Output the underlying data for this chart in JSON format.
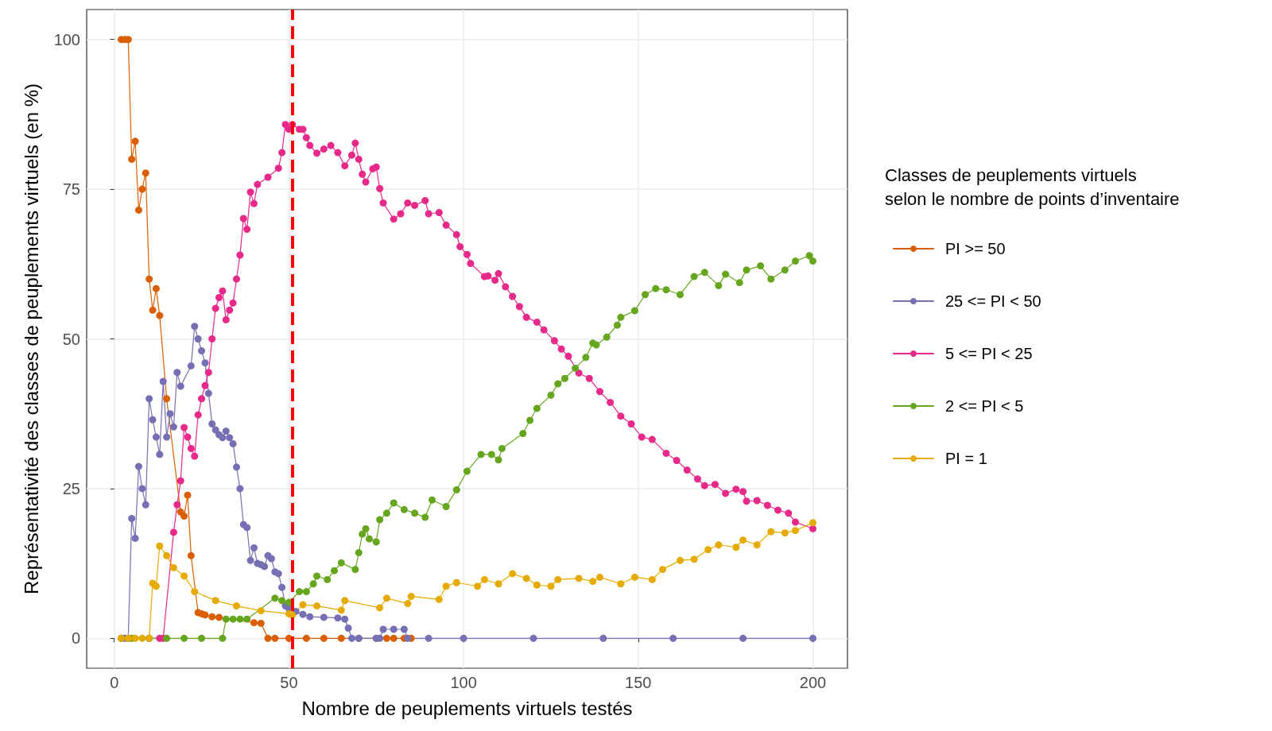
{
  "chart_data": {
    "type": "line",
    "xlabel": "Nombre de peuplements virtuels testés",
    "ylabel": "Représentativité des classes de peuplements virtuels (en %)",
    "legend_title": "Classes de peuplements virtuels\nselon le nombre de points d’inventaire",
    "legend": "right",
    "grid": true,
    "marker": "circle",
    "line_style": "solid",
    "xlim": [
      -7.9,
      209.9
    ],
    "xticks": [
      0,
      50,
      100,
      150,
      200
    ],
    "ylim": [
      -5,
      105
    ],
    "yticks": [
      0,
      25,
      50,
      75,
      100
    ],
    "ref_lines": [
      {
        "axis": "x",
        "value": 51,
        "color": "#ff0000",
        "line_style": "dashed"
      }
    ],
    "series": [
      {
        "name": "PI >= 50",
        "color": "#d95f02",
        "x": [
          2,
          3,
          4,
          5,
          6,
          7,
          8,
          9,
          10,
          11,
          12,
          13,
          15,
          19,
          20,
          21,
          22,
          24,
          25,
          26,
          28,
          30,
          40,
          42,
          44,
          46,
          50,
          55,
          60,
          65,
          70,
          75,
          78,
          80,
          83,
          85
        ],
        "values": [
          100,
          100,
          100,
          80,
          83,
          71.5,
          75,
          77.7,
          60,
          54.8,
          58.4,
          53.9,
          40,
          21.1,
          20.4,
          23.9,
          13.8,
          4.3,
          4.1,
          3.9,
          3.6,
          3.5,
          2.6,
          2.5,
          0,
          0,
          0,
          0,
          0,
          0,
          0,
          0,
          0,
          0,
          0,
          0
        ]
      },
      {
        "name": "25 <= PI < 50",
        "color": "#7570b3",
        "x": [
          2,
          3,
          4,
          5,
          6,
          7,
          8,
          9,
          10,
          11,
          12,
          13,
          14,
          15,
          16,
          17,
          18,
          19,
          22,
          23,
          24,
          25,
          26,
          27,
          28,
          29,
          30,
          31,
          32,
          33,
          34,
          35,
          36,
          37,
          38,
          39,
          40,
          41,
          42,
          43,
          44,
          45,
          46,
          47,
          48,
          49,
          50,
          52,
          54,
          56,
          60,
          64,
          66,
          67,
          68,
          70,
          75,
          76,
          77,
          80,
          83,
          84,
          90,
          100,
          120,
          140,
          160,
          180,
          200
        ],
        "values": [
          0,
          0,
          0,
          20,
          16.7,
          28.7,
          25,
          22.3,
          40,
          36.5,
          33.6,
          30.7,
          42.9,
          33.6,
          37.5,
          35.3,
          44.4,
          42.1,
          45.5,
          52.1,
          50,
          48,
          46,
          40.9,
          35.8,
          34.8,
          34,
          33.5,
          34.6,
          33.5,
          32.5,
          28.6,
          25,
          19,
          18.5,
          13,
          15.1,
          12.5,
          12.3,
          12,
          13.8,
          13.3,
          11.1,
          10.8,
          8.5,
          5.4,
          5,
          4.5,
          4,
          3.6,
          3.5,
          3.4,
          3.2,
          1.7,
          0,
          0,
          0,
          0,
          1.5,
          1.5,
          1.5,
          0,
          0,
          0,
          0,
          0,
          0,
          0,
          0
        ]
      },
      {
        "name": "5 <= PI < 25",
        "color": "#e7298a",
        "x": [
          10,
          13,
          14,
          17,
          18,
          19,
          20,
          21,
          22,
          23,
          24,
          25,
          26,
          27,
          28,
          29,
          30,
          31,
          32,
          33,
          34,
          35,
          36,
          37,
          38,
          39,
          40,
          41,
          44,
          47,
          48,
          49,
          50,
          51,
          53,
          54,
          55,
          56,
          58,
          60,
          62,
          64,
          66,
          68,
          69,
          70,
          71,
          72,
          74,
          75,
          76,
          77,
          80,
          82,
          84,
          86,
          89,
          90,
          93,
          95,
          98,
          99,
          101,
          102,
          106,
          107,
          109,
          110,
          112,
          114,
          116,
          118,
          121,
          123,
          126,
          128,
          130,
          133,
          136,
          139,
          142,
          145,
          148,
          151,
          154,
          158,
          161,
          164,
          167,
          169,
          172,
          175,
          178,
          180,
          181,
          184,
          187,
          190,
          193,
          195,
          200
        ],
        "values": [
          0,
          0,
          0,
          17.7,
          22.3,
          26.3,
          35.2,
          33.6,
          31.7,
          30.4,
          37.3,
          40,
          42.2,
          44.4,
          50,
          55.1,
          56.9,
          58,
          53.2,
          54.8,
          56,
          60,
          64,
          70.1,
          68.3,
          74.5,
          72.6,
          75.8,
          77,
          78.5,
          81.1,
          85.8,
          85,
          85.8,
          85,
          85,
          83.6,
          82.3,
          81,
          81.7,
          82.3,
          81.1,
          78.9,
          80.7,
          82.7,
          80,
          77.5,
          76.2,
          78.4,
          78.7,
          75.1,
          72.7,
          70,
          70.9,
          72.7,
          72.3,
          73.1,
          70.9,
          71.1,
          69,
          67.4,
          65.4,
          64.1,
          62.6,
          60.4,
          60.5,
          59.8,
          60.9,
          58.7,
          57.1,
          55.4,
          53.6,
          52.8,
          51.5,
          49.7,
          48.3,
          47.1,
          44.3,
          43.4,
          41.2,
          39.4,
          37.1,
          35.8,
          33.6,
          33.2,
          30.9,
          29.7,
          28.1,
          26.6,
          25.5,
          25.7,
          24.2,
          24.9,
          24.5,
          22.9,
          23,
          22.2,
          21.4,
          20.9,
          19.4,
          18.3
        ]
      },
      {
        "name": "2 <= PI < 5",
        "color": "#66a61e",
        "x": [
          2,
          5,
          10,
          15,
          20,
          25,
          31,
          32,
          34,
          36,
          38,
          46,
          48,
          50,
          53,
          55,
          57,
          58,
          61,
          63,
          65,
          69,
          70,
          71,
          72,
          73,
          75,
          76,
          78,
          80,
          83,
          86,
          89,
          91,
          95,
          98,
          101,
          105,
          108,
          110,
          111,
          117,
          119,
          121,
          125,
          127,
          129,
          132,
          135,
          137,
          138,
          141,
          144,
          145,
          149,
          152,
          155,
          158,
          162,
          166,
          169,
          173,
          175,
          179,
          181,
          185,
          188,
          192,
          195,
          199,
          200
        ],
        "values": [
          0,
          0,
          0,
          0,
          0,
          0,
          0,
          3.2,
          3.2,
          3.2,
          3.2,
          6.7,
          6.3,
          6,
          7.8,
          7.8,
          9.1,
          10.4,
          9.8,
          11.3,
          12.6,
          11.5,
          14.3,
          17.4,
          18.3,
          16.6,
          16.1,
          19.8,
          20.9,
          22.6,
          21.5,
          20.9,
          20.2,
          23.1,
          22,
          24.8,
          27.9,
          30.7,
          30.7,
          29.8,
          31.7,
          34.2,
          36.4,
          38.4,
          40.6,
          42.5,
          43.4,
          45.1,
          46.9,
          49.3,
          49,
          50.3,
          52.3,
          53.6,
          54.7,
          57.4,
          58.4,
          58.2,
          57.4,
          60.4,
          61.1,
          58.9,
          60.8,
          59.4,
          61.5,
          62.2,
          60,
          61.5,
          63,
          63.9,
          63
        ]
      },
      {
        "name": "PI = 1",
        "color": "#e6ab02",
        "x": [
          2,
          4,
          6,
          8,
          10,
          11,
          12,
          13,
          15,
          17,
          20,
          23,
          29,
          35,
          42,
          50,
          51,
          54,
          58,
          65,
          66,
          76,
          78,
          84,
          85,
          93,
          95,
          98,
          104,
          106,
          110,
          114,
          118,
          121,
          125,
          127,
          133,
          137,
          139,
          145,
          149,
          154,
          157,
          162,
          166,
          170,
          173,
          178,
          180,
          184,
          188,
          192,
          195,
          200
        ],
        "values": [
          0,
          0,
          0,
          0,
          0,
          9.2,
          8.7,
          15.4,
          13.8,
          11.8,
          10.4,
          7.8,
          6.3,
          5.4,
          4.6,
          4.1,
          3.9,
          5.6,
          5.4,
          4.7,
          6.3,
          5.1,
          6.7,
          5.8,
          7,
          6.5,
          8.7,
          9.3,
          8.7,
          9.8,
          9.1,
          10.8,
          10,
          8.9,
          8.7,
          9.8,
          10,
          9.5,
          10.2,
          9.1,
          10.2,
          9.8,
          11.5,
          13,
          13.2,
          14.8,
          15.6,
          15.2,
          16.4,
          15.6,
          17.8,
          17.6,
          18,
          19.3
        ]
      }
    ]
  }
}
